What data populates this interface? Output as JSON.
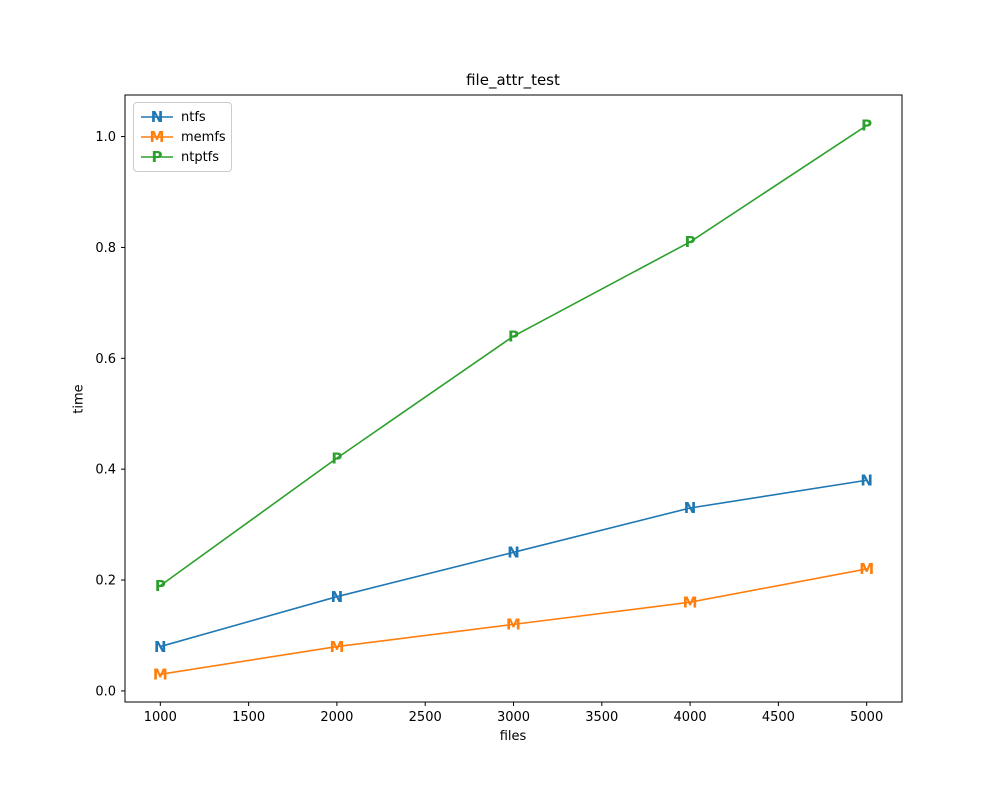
{
  "chart_data": {
    "type": "line",
    "title": "file_attr_test",
    "xlabel": "files",
    "ylabel": "time",
    "x": [
      1000,
      2000,
      3000,
      4000,
      5000
    ],
    "series": [
      {
        "name": "ntfs",
        "marker": "N",
        "color": "#1f77b4",
        "values": [
          0.08,
          0.17,
          0.25,
          0.33,
          0.38
        ]
      },
      {
        "name": "memfs",
        "marker": "M",
        "color": "#ff7f0e",
        "values": [
          0.03,
          0.08,
          0.12,
          0.16,
          0.22
        ]
      },
      {
        "name": "ntptfs",
        "marker": "P",
        "color": "#2ca02c",
        "values": [
          0.19,
          0.42,
          0.64,
          0.81,
          1.02
        ]
      }
    ],
    "xlim": [
      800,
      5200
    ],
    "ylim": [
      -0.02,
      1.075
    ],
    "xticks": {
      "values": [
        1000,
        1500,
        2000,
        2500,
        3000,
        3500,
        4000,
        4500,
        5000
      ],
      "labels": [
        "1000",
        "1500",
        "2000",
        "2500",
        "3000",
        "3500",
        "4000",
        "4500",
        "5000"
      ]
    },
    "yticks": {
      "values": [
        0.0,
        0.2,
        0.4,
        0.6,
        0.8,
        1.0
      ],
      "labels": [
        "0.0",
        "0.2",
        "0.4",
        "0.6",
        "0.8",
        "1.0"
      ]
    },
    "grid": false,
    "legend": {
      "position": "upper-left",
      "border_color": "#cccccc"
    },
    "axis_color": "#000000",
    "background_color": "#ffffff"
  }
}
